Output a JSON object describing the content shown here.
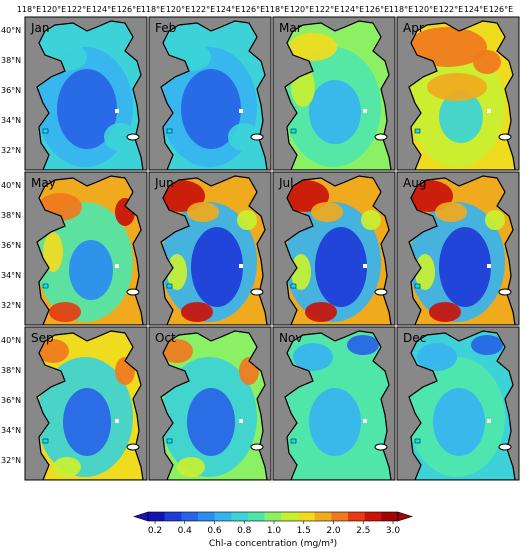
{
  "figure": {
    "top_lon_labels": [
      "118°E",
      "120°E",
      "122°E",
      "124°E",
      "126°E",
      "118°E",
      "120°E",
      "122°E",
      "124°E",
      "126°E",
      "118°E",
      "120°E",
      "122°E",
      "124°E",
      "126°E",
      "118°E",
      "120°E",
      "122°E",
      "124°E",
      "126°E"
    ],
    "lat_labels": [
      "40°N",
      "38°N",
      "36°N",
      "34°N",
      "32°N"
    ],
    "panels": [
      {
        "month": "Jan",
        "pattern": "low-central",
        "intensity": 0.3
      },
      {
        "month": "Feb",
        "pattern": "low-central",
        "intensity": 0.25
      },
      {
        "month": "Mar",
        "pattern": "coastal",
        "intensity": 0.55
      },
      {
        "month": "Apr",
        "pattern": "north-bloom",
        "intensity": 0.75
      },
      {
        "month": "May",
        "pattern": "coastal-high",
        "intensity": 0.8
      },
      {
        "month": "Jun",
        "pattern": "summer",
        "intensity": 0.85
      },
      {
        "month": "Jul",
        "pattern": "summer",
        "intensity": 0.85
      },
      {
        "month": "Aug",
        "pattern": "summer",
        "intensity": 0.85
      },
      {
        "month": "Sep",
        "pattern": "autumn",
        "intensity": 0.75
      },
      {
        "month": "Oct",
        "pattern": "autumn",
        "intensity": 0.55
      },
      {
        "month": "Nov",
        "pattern": "winter",
        "intensity": 0.4
      },
      {
        "month": "Dec",
        "pattern": "winter",
        "intensity": 0.3
      }
    ],
    "land_color": "#888888",
    "colorbar": {
      "ticks": [
        "0.2",
        "0.4",
        "0.6",
        "0.8",
        "1.0",
        "1.5",
        "2.0",
        "2.5",
        "3.0"
      ],
      "colors": [
        "#1414b4",
        "#1e3cd7",
        "#2864e6",
        "#2d8cf0",
        "#37b4f0",
        "#3cd2d7",
        "#50e6aa",
        "#8cf064",
        "#c8f032",
        "#f0dc1e",
        "#f0aa1e",
        "#f0781e",
        "#e63c14",
        "#c8140a",
        "#a00505"
      ],
      "title": "Chl-a concentration (mg/m³)"
    }
  }
}
